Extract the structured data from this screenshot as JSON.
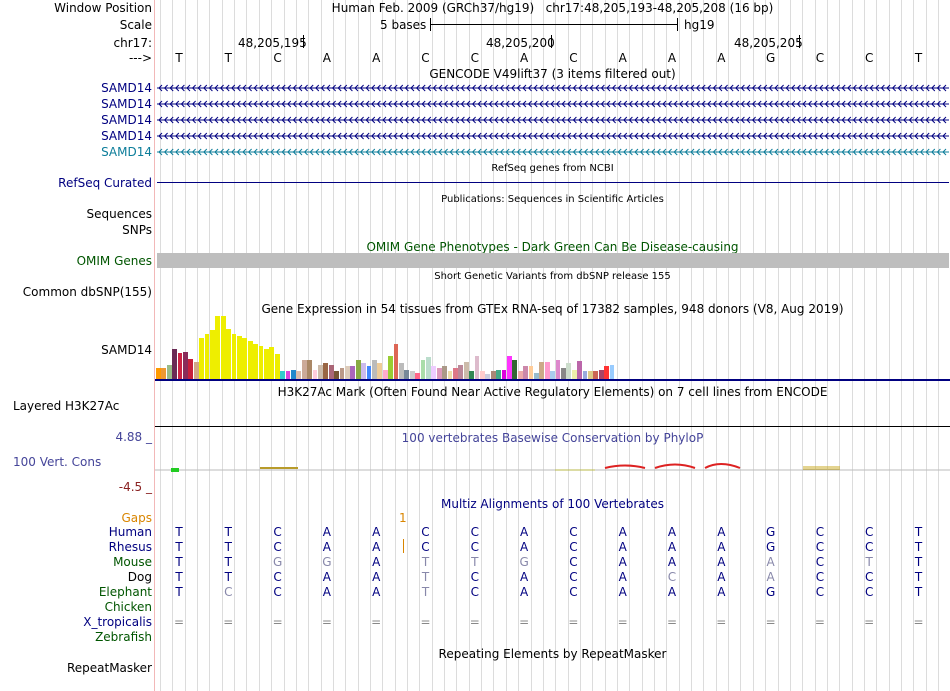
{
  "header": {
    "window_position_label": "Window Position",
    "window_position_value": "Human Feb. 2009 (GRCh37/hg19)   chr17:48,205,193-48,205,208 (16 bp)",
    "scale_label": "Scale",
    "scale_text": "5 bases",
    "assembly": "hg19",
    "chrom_label": "chr17:",
    "arrow_label": "--->",
    "positions": [
      "48,205,195",
      "48,205,200",
      "48,205,205"
    ]
  },
  "sequence": [
    "T",
    "T",
    "C",
    "A",
    "A",
    "C",
    "C",
    "A",
    "C",
    "A",
    "A",
    "A",
    "G",
    "C",
    "C",
    "T"
  ],
  "gencode": {
    "title": "GENCODE V49lift37 (3 items filtered out)",
    "genes": [
      "SAMD14",
      "SAMD14",
      "SAMD14",
      "SAMD14",
      "SAMD14"
    ]
  },
  "refseq": {
    "title": "RefSeq genes from NCBI",
    "label": "RefSeq Curated"
  },
  "publications": {
    "title": "Publications: Sequences in Scientific Articles",
    "labels": [
      "Sequences",
      "SNPs"
    ]
  },
  "omim": {
    "title": "OMIM Gene Phenotypes - Dark Green Can Be Disease-causing",
    "label": "OMIM Genes"
  },
  "dbsnp": {
    "title": "Short Genetic Variants from dbSNP release 155",
    "label": "Common dbSNP(155)"
  },
  "gtex": {
    "title": "Gene Expression in 54 tissues from GTEx RNA-seq of 17382 samples, 948 donors (V8, Aug 2019)",
    "label": "SAMD14",
    "tissue_levels": [
      0.18,
      0.18,
      0.22,
      0.47,
      0.42,
      0.43,
      0.32,
      0.27,
      0.65,
      0.72,
      0.77,
      1.0,
      1.0,
      0.8,
      0.72,
      0.68,
      0.65,
      0.6,
      0.55,
      0.52,
      0.47,
      0.5,
      0.4,
      0.12,
      0.12,
      0.15,
      0.12,
      0.3,
      0.3,
      0.15,
      0.22,
      0.25,
      0.22,
      0.13,
      0.17,
      0.2,
      0.2,
      0.3,
      0.25,
      0.2,
      0.3,
      0.25,
      0.15,
      0.37,
      0.55,
      0.25,
      0.15,
      0.12,
      0.1,
      0.3,
      0.35,
      0.2,
      0.18,
      0.2,
      0.12,
      0.17,
      0.22,
      0.27,
      0.12,
      0.37,
      0.12,
      0.08,
      0.12,
      0.15,
      0.15,
      0.37,
      0.3,
      0.12,
      0.2,
      0.2,
      0.1,
      0.27,
      0.27,
      0.12,
      0.3,
      0.18,
      0.25,
      0.15,
      0.28,
      0.12,
      0.12,
      0.12,
      0.15,
      0.2,
      0.22
    ],
    "tissue_colors": [
      "#ff9900",
      "#ee9933",
      "#99bb88",
      "#6b2a55",
      "#cc2244",
      "#8a2b5a",
      "#c71f3c",
      "#d2a888",
      "#eeee00",
      "#eeee00",
      "#eeee00",
      "#eeee00",
      "#eeee00",
      "#eeee00",
      "#eeee00",
      "#eeee00",
      "#eeee00",
      "#eeee00",
      "#eeee00",
      "#eeee00",
      "#eeee00",
      "#eeee00",
      "#eeee00",
      "#33cccc",
      "#dd44dd",
      "#2288cc",
      "#ddbbaa",
      "#ccaa99",
      "#aa8866",
      "#ffccdd",
      "#ccbbaa",
      "#996644",
      "#aa6677",
      "#775533",
      "#bb9988",
      "#ddccbb",
      "#aa66bb",
      "#88aa44",
      "#ccbbee",
      "#4488ff",
      "#bbbbbb",
      "#eecc99",
      "#ffaacc",
      "#99cc33",
      "#dd6655",
      "#bbbbbb",
      "#778899",
      "#cccccc",
      "#ff6688",
      "#aaddaa",
      "#bbddcc",
      "#eeccff",
      "#dd99bb",
      "#aa9988",
      "#eeddaa",
      "#dd7788",
      "#bb8899",
      "#ccbbaa",
      "#338855",
      "#ddbbcc",
      "#ffcccc",
      "#ccccdd",
      "#aa8877",
      "#44aa88",
      "#dd00dd",
      "#ff33ff",
      "#336633",
      "#eeaaaa",
      "#cc88aa",
      "#ffcc99",
      "#99bbcc",
      "#ccaa88",
      "#ff99cc",
      "#aaccee",
      "#dd88cc",
      "#888888",
      "#ccddcc",
      "#eeeeaa",
      "#bb66aa",
      "#99aadd",
      "#ddcc88",
      "#cc6655",
      "#aa4466",
      "#ff3333",
      "#99ccff"
    ]
  },
  "h3k27ac": {
    "title": "H3K27Ac Mark (Often Found Near Active Regulatory Elements) on 7 cell lines from ENCODE",
    "label": "Layered H3K27Ac"
  },
  "conservation": {
    "title": "100 vertebrates Basewise Conservation by PhyloP",
    "label": "100 Vert. Cons",
    "max": "4.88 _",
    "min": "-4.5 _"
  },
  "multiz": {
    "title": "Multiz Alignments of 100 Vertebrates",
    "gaps_label": "Gaps",
    "gap_marker": "1",
    "species": [
      {
        "name": "Human",
        "bases": [
          "T",
          "T",
          "C",
          "A",
          "A",
          "C",
          "C",
          "A",
          "C",
          "A",
          "A",
          "A",
          "G",
          "C",
          "C",
          "T"
        ]
      },
      {
        "name": "Rhesus",
        "bases": [
          "T",
          "T",
          "C",
          "A",
          "A",
          "C",
          "C",
          "A",
          "C",
          "A",
          "A",
          "A",
          "G",
          "C",
          "C",
          "T"
        ]
      },
      {
        "name": "Mouse",
        "bases": [
          "T",
          "T",
          "G",
          "G",
          "A",
          "T",
          "T",
          "G",
          "C",
          "A",
          "A",
          "A",
          "A",
          "C",
          "T",
          "T"
        ]
      },
      {
        "name": "Dog",
        "bases": [
          "T",
          "T",
          "C",
          "A",
          "A",
          "T",
          "C",
          "A",
          "C",
          "A",
          "C",
          "A",
          "A",
          "C",
          "C",
          "T"
        ]
      },
      {
        "name": "Elephant",
        "bases": [
          "T",
          "C",
          "C",
          "A",
          "A",
          "T",
          "C",
          "A",
          "C",
          "A",
          "A",
          "A",
          "G",
          "C",
          "C",
          "T"
        ]
      },
      {
        "name": "Chicken",
        "bases": []
      },
      {
        "name": "X_tropicalis",
        "bases": [
          "=",
          "=",
          "=",
          "=",
          "=",
          "=",
          "=",
          "=",
          "=",
          "=",
          "=",
          "=",
          "=",
          "=",
          "=",
          "="
        ]
      },
      {
        "name": "Zebrafish",
        "bases": []
      }
    ]
  },
  "repeatmasker": {
    "title": "Repeating Elements by RepeatMasker",
    "label": "RepeatMasker"
  },
  "colors": {
    "navy": "#000080",
    "gene_cyan": "#0c7d9a",
    "omim_green": "#005500",
    "omim_bar": "#bebebe",
    "gaps_orange": "#d98500",
    "cons_blue": "#444499",
    "cons_red": "#8a2222",
    "grid": "#dcdcdc"
  }
}
